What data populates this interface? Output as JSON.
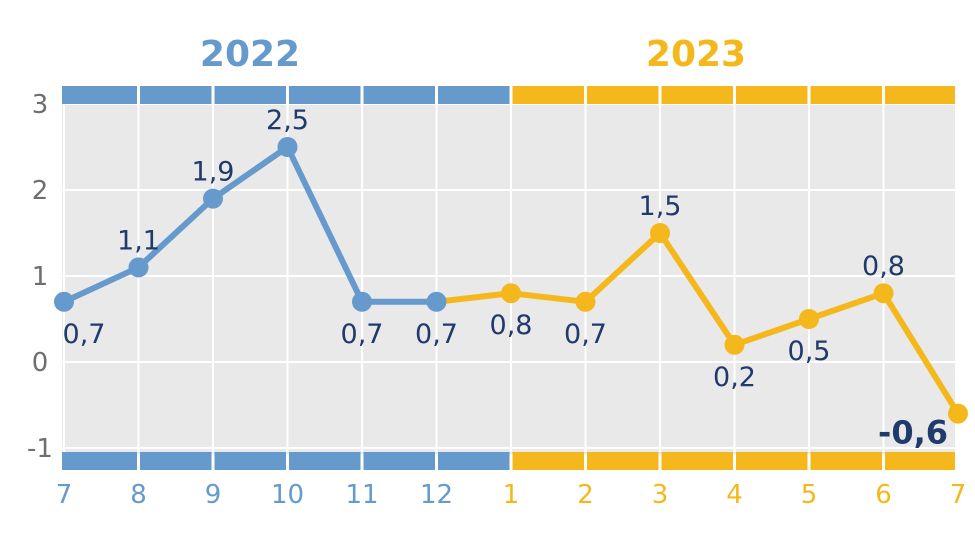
{
  "colors": {
    "y2022": "#6699cc",
    "y2023": "#f5b81c",
    "plot_bg": "#e9e9e9",
    "grid": "#ffffff",
    "label": "#1f3a6b",
    "tick": "#6e6e6e"
  },
  "years": [
    {
      "label": "2022",
      "color": "#6699cc"
    },
    {
      "label": "2023",
      "color": "#f5b81c"
    }
  ],
  "chart_data": {
    "type": "line",
    "x": [
      "7",
      "8",
      "9",
      "10",
      "11",
      "12",
      "1",
      "2",
      "3",
      "4",
      "5",
      "6",
      "7"
    ],
    "values": [
      0.7,
      1.1,
      1.9,
      2.5,
      0.7,
      0.7,
      0.8,
      0.7,
      1.5,
      0.2,
      0.5,
      0.8,
      -0.6
    ],
    "labels": [
      "0,7",
      "1,1",
      "1,9",
      "2,5",
      "0,7",
      "0,7",
      "0,8",
      "0,7",
      "1,5",
      "0,2",
      "0,5",
      "0,8",
      "-0,6"
    ],
    "label_pos": [
      "below",
      "above",
      "above",
      "above",
      "below",
      "below",
      "below",
      "below",
      "above",
      "below",
      "below",
      "above",
      "below-left"
    ],
    "year_of": [
      "2022",
      "2022",
      "2022",
      "2022",
      "2022",
      "2022",
      "2023",
      "2023",
      "2023",
      "2023",
      "2023",
      "2023",
      "2023"
    ],
    "yticks": [
      3,
      2,
      1,
      0,
      -1
    ],
    "ylim": [
      -1,
      3
    ],
    "grid": true,
    "xlabel": "",
    "ylabel": ""
  }
}
